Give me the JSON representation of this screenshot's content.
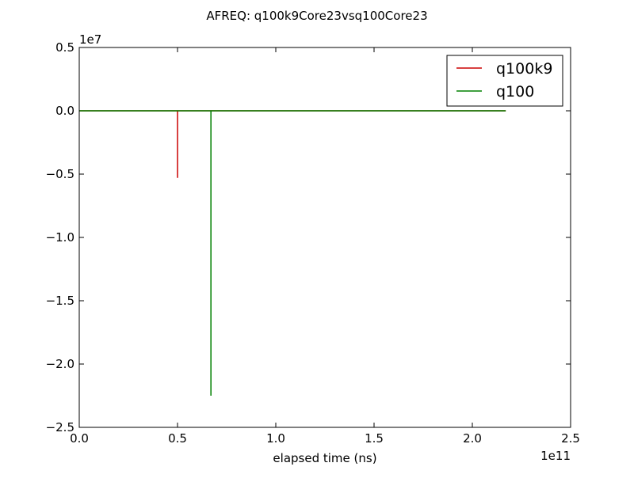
{
  "chart_data": {
    "type": "line",
    "title": "AFREQ: q100k9Core23vsq100Core23",
    "xlabel": "elapsed time (ns)",
    "ylabel": "",
    "x_offset_label": "1e11",
    "y_offset_label": "1e7",
    "x_scale": 100000000000.0,
    "y_scale": 10000000.0,
    "xlim": [
      0,
      250000000000
    ],
    "ylim": [
      -25000000,
      5000000
    ],
    "x_ticks": [
      0,
      50000000000,
      100000000000,
      150000000000,
      200000000000,
      250000000000
    ],
    "x_tick_labels": [
      "0.0",
      "0.5",
      "1.0",
      "1.5",
      "2.0",
      "2.5"
    ],
    "y_ticks": [
      5000000,
      0,
      -5000000,
      -10000000,
      -15000000,
      -20000000,
      -25000000
    ],
    "y_tick_labels": [
      "0.5",
      "0.0",
      "−0.5",
      "−1.0",
      "−1.5",
      "−2.0",
      "−2.5"
    ],
    "grid": false,
    "legend_position": "top-right",
    "series": [
      {
        "name": "q100k9",
        "color": "#cc0000",
        "points": [
          [
            0,
            0
          ],
          [
            50000000000,
            0
          ],
          [
            50000000000,
            -5300000
          ],
          [
            50000000000,
            0
          ],
          [
            217000000000,
            0
          ]
        ]
      },
      {
        "name": "q100",
        "color": "#008000",
        "points": [
          [
            0,
            0
          ],
          [
            67000000000,
            0
          ],
          [
            67000000000,
            -22500000
          ],
          [
            67000000000,
            0
          ],
          [
            217000000000,
            0
          ]
        ]
      }
    ]
  }
}
